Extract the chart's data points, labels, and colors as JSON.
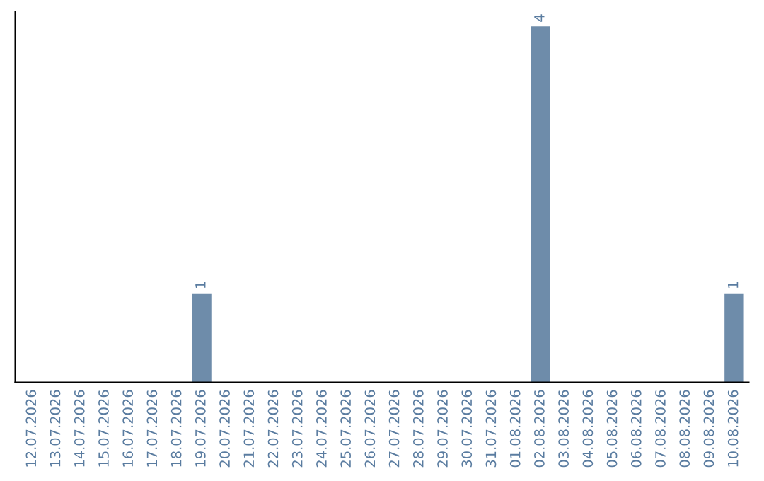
{
  "chart_data": {
    "type": "bar",
    "categories": [
      "12.07.2026",
      "13.07.2026",
      "14.07.2026",
      "15.07.2026",
      "16.07.2026",
      "17.07.2026",
      "18.07.2026",
      "19.07.2026",
      "20.07.2026",
      "21.07.2026",
      "22.07.2026",
      "23.07.2026",
      "24.07.2026",
      "25.07.2026",
      "26.07.2026",
      "27.07.2026",
      "28.07.2026",
      "29.07.2026",
      "30.07.2026",
      "31.07.2026",
      "01.08.2026",
      "02.08.2026",
      "03.08.2026",
      "04.08.2026",
      "05.08.2026",
      "06.08.2026",
      "07.08.2026",
      "08.08.2026",
      "09.08.2026",
      "10.08.2026"
    ],
    "values": [
      0,
      0,
      0,
      0,
      0,
      0,
      0,
      1,
      0,
      0,
      0,
      0,
      0,
      0,
      0,
      0,
      0,
      0,
      0,
      0,
      0,
      4,
      0,
      0,
      0,
      0,
      0,
      0,
      0,
      1
    ],
    "value_labels": [
      null,
      null,
      null,
      null,
      null,
      null,
      null,
      "1",
      null,
      null,
      null,
      null,
      null,
      null,
      null,
      null,
      null,
      null,
      null,
      null,
      null,
      "4",
      null,
      null,
      null,
      null,
      null,
      null,
      null,
      "1"
    ],
    "color": "#6e8caa",
    "tick_labels": "x",
    "grid": false,
    "legend": false
  }
}
